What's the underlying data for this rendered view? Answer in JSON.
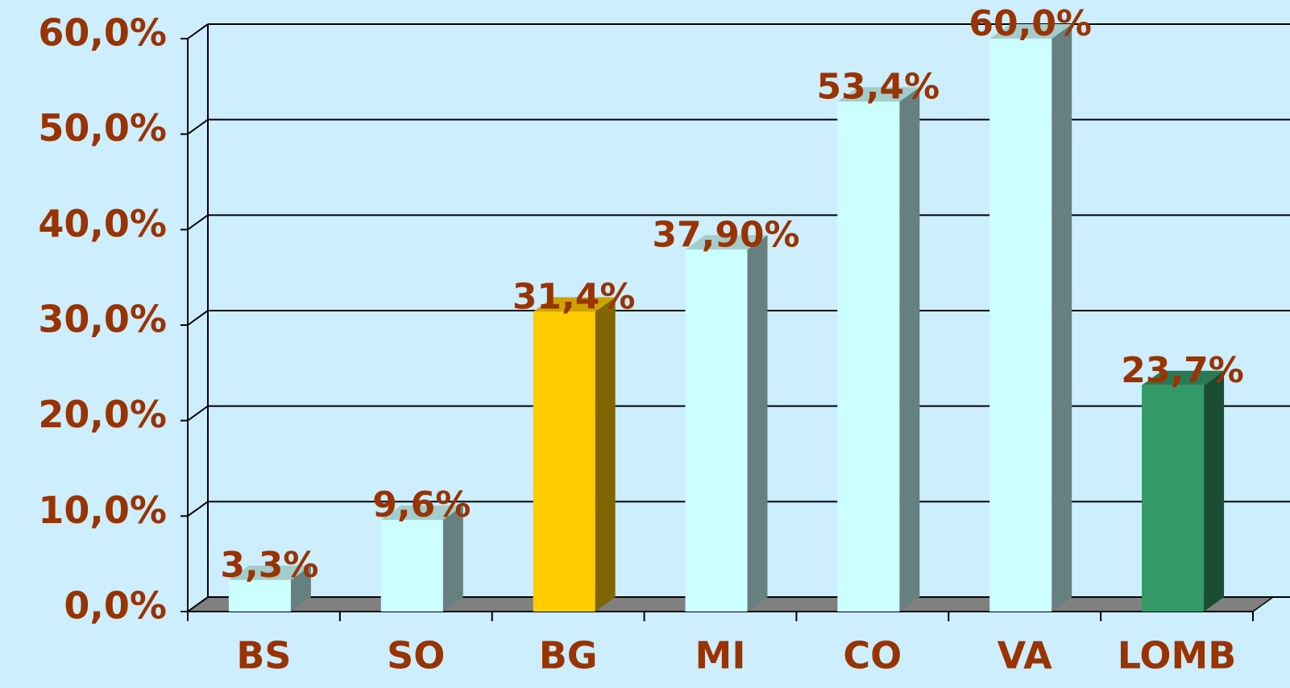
{
  "chart_data": {
    "type": "bar",
    "categories": [
      "BS",
      "SO",
      "BG",
      "MI",
      "CO",
      "VA",
      "LOMB"
    ],
    "values": [
      3.3,
      9.6,
      31.4,
      37.9,
      53.4,
      60.0,
      23.7
    ],
    "value_labels": [
      "3,3%",
      "9,6%",
      "31,4%",
      "37,90%",
      "53,4%",
      "60,0%",
      "23,7%"
    ],
    "colors": [
      "#ccffff",
      "#ccffff",
      "#ffcc00",
      "#ccffff",
      "#ccffff",
      "#ccffff",
      "#339966"
    ],
    "ylim": [
      0,
      60
    ],
    "yticks": [
      {
        "value": 0,
        "label": "0,0%"
      },
      {
        "value": 10,
        "label": "10,0%"
      },
      {
        "value": 20,
        "label": "20,0%"
      },
      {
        "value": 30,
        "label": "30,0%"
      },
      {
        "value": 40,
        "label": "40,0%"
      },
      {
        "value": 50,
        "label": "50,0%"
      },
      {
        "value": 60,
        "label": "60,0%"
      }
    ],
    "grid": true
  }
}
